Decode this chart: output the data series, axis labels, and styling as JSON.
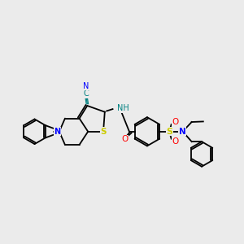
{
  "bg_color": "#ebebeb",
  "bond_color": "#000000",
  "bond_width": 1.3,
  "S_color": "#cccc00",
  "N_color": "#0000ff",
  "O_color": "#ff0000",
  "teal_color": "#008080",
  "figsize": [
    3.0,
    3.0
  ],
  "dpi": 100,
  "xlim": [
    0,
    10
  ],
  "ylim": [
    2,
    8.5
  ]
}
